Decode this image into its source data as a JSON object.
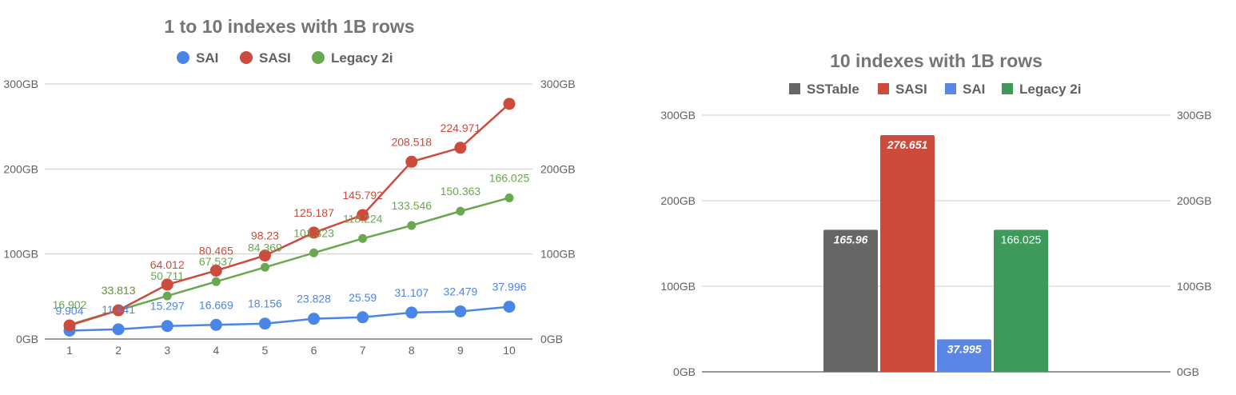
{
  "chart_data": [
    {
      "type": "line",
      "title": "1 to 10 indexes with 1B rows",
      "xlabel": "",
      "ylabel": "",
      "x": [
        1,
        2,
        3,
        4,
        5,
        6,
        7,
        8,
        9,
        10
      ],
      "ylim": [
        0,
        300
      ],
      "yticks": [
        "0GB",
        "100GB",
        "200GB",
        "300GB"
      ],
      "legend_position": "top",
      "grid": true,
      "series": [
        {
          "name": "SAI",
          "color": "#4a86e8",
          "marker_size": "large",
          "values": [
            9.904,
            11.441,
            15.297,
            16.669,
            18.156,
            23.828,
            25.59,
            31.107,
            32.479,
            37.996
          ],
          "labels": [
            "9.904",
            "11.441",
            "15.297",
            "16.669",
            "18.156",
            "23.828",
            "25.59",
            "31.107",
            "32.479",
            "37.996"
          ]
        },
        {
          "name": "SASI",
          "color": "#cc4b3c",
          "marker_size": "large",
          "values": [
            16.0,
            33.813,
            64.012,
            80.465,
            98.23,
            125.187,
            145.792,
            208.518,
            224.971,
            276.651
          ],
          "labels": [
            "",
            "33.813",
            "64.012",
            "80.465",
            "98.23",
            "125.187",
            "145.792",
            "208.518",
            "224.971",
            ""
          ]
        },
        {
          "name": "Legacy 2i",
          "color": "#6aa84f",
          "marker_size": "small",
          "values": [
            16.902,
            33.813,
            50.711,
            67.537,
            84.369,
            101.323,
            118.224,
            133.546,
            150.363,
            166.025
          ],
          "labels": [
            "16.902",
            "33.813",
            "50.711",
            "67.537",
            "84.369",
            "101.323",
            "118.224",
            "133.546",
            "150.363",
            "166.025"
          ]
        }
      ]
    },
    {
      "type": "bar",
      "title": "10 indexes with 1B rows",
      "xlabel": "",
      "ylabel": "",
      "ylim": [
        0,
        300
      ],
      "yticks": [
        "0GB",
        "100GB",
        "200GB",
        "300GB"
      ],
      "legend_position": "top",
      "grid": true,
      "series": [
        {
          "name": "SSTable",
          "color": "#666666",
          "value": 165.96,
          "label": "165.96"
        },
        {
          "name": "SASI",
          "color": "#cc4b3c",
          "value": 276.651,
          "label": "276.651"
        },
        {
          "name": "SAI",
          "color": "#5b86e5",
          "value": 37.995,
          "label": "37.995"
        },
        {
          "name": "Legacy 2i",
          "color": "#3d9a5a",
          "value": 166.025,
          "label": "166.025"
        }
      ]
    }
  ]
}
